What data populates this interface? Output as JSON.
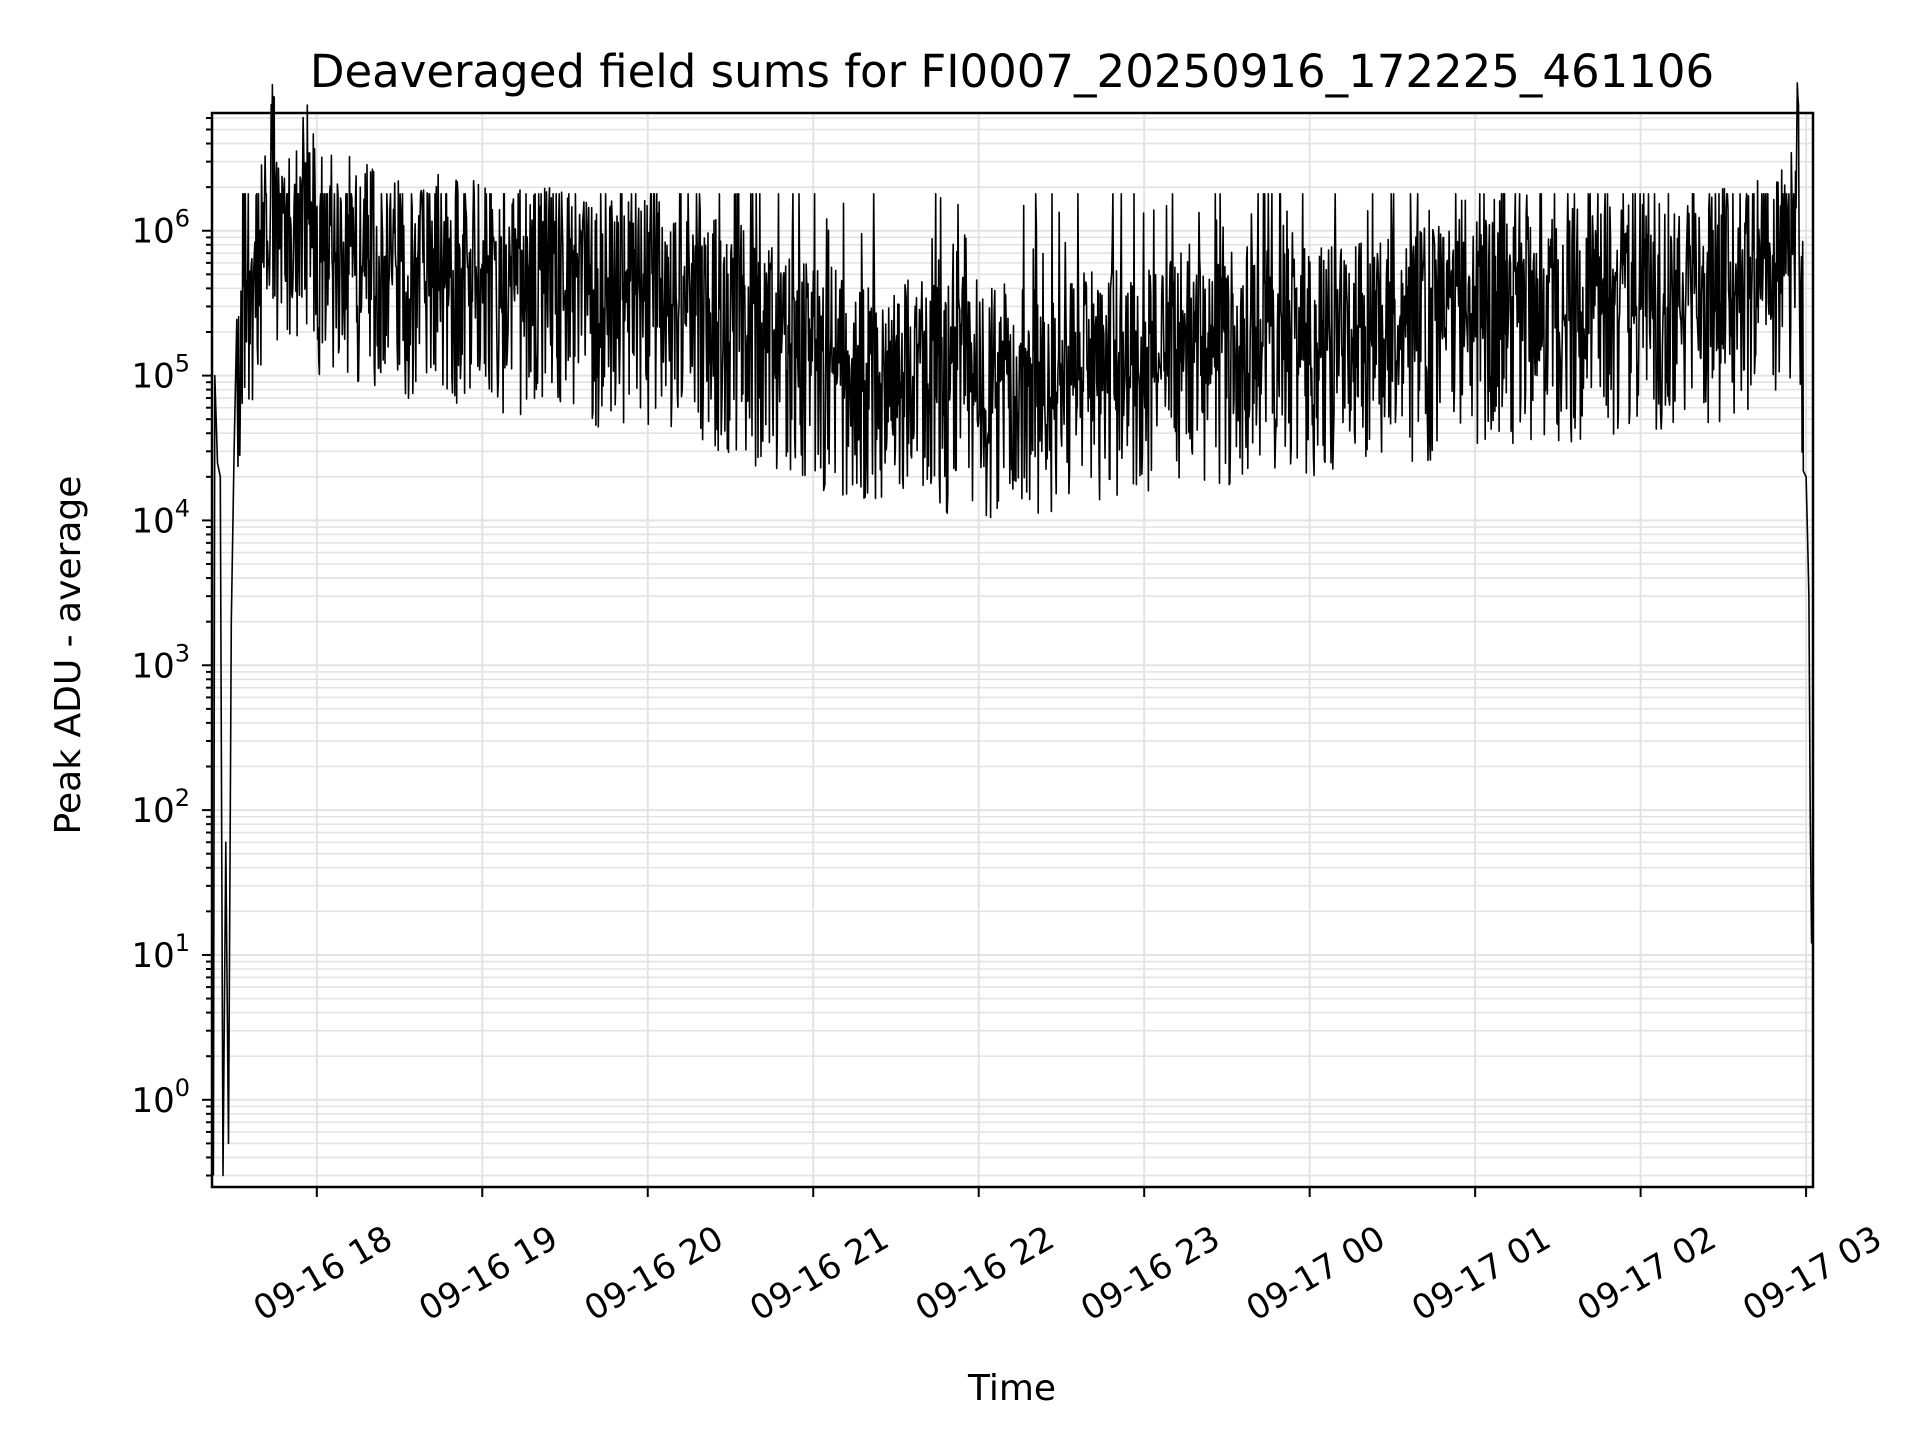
{
  "chart_data": {
    "type": "line",
    "title": "Deaveraged field sums for FI0007_20250916_172225_461106",
    "xlabel": "Time",
    "ylabel": "Peak ADU - average",
    "yscale": "log",
    "ylim": [
      0.25,
      6500000
    ],
    "xlim": [
      "2025-09-16T17:22:00",
      "2025-09-17T03:02:30"
    ],
    "grid": true,
    "colors": {
      "line": "#000000",
      "grid": "#e3e3e3"
    },
    "x_ticks": [
      {
        "x": "2025-09-16T18:00:00",
        "label": "09-16 18"
      },
      {
        "x": "2025-09-16T19:00:00",
        "label": "09-16 19"
      },
      {
        "x": "2025-09-16T20:00:00",
        "label": "09-16 20"
      },
      {
        "x": "2025-09-16T21:00:00",
        "label": "09-16 21"
      },
      {
        "x": "2025-09-16T22:00:00",
        "label": "09-16 22"
      },
      {
        "x": "2025-09-16T23:00:00",
        "label": "09-16 23"
      },
      {
        "x": "2025-09-17T00:00:00",
        "label": "09-17 00"
      },
      {
        "x": "2025-09-17T01:00:00",
        "label": "09-17 01"
      },
      {
        "x": "2025-09-17T02:00:00",
        "label": "09-17 02"
      },
      {
        "x": "2025-09-17T03:00:00",
        "label": "09-17 03"
      }
    ],
    "y_ticks": [
      {
        "value": 1,
        "base": "10",
        "exp": "0"
      },
      {
        "value": 10,
        "base": "10",
        "exp": "1"
      },
      {
        "value": 100,
        "base": "10",
        "exp": "2"
      },
      {
        "value": 1000,
        "base": "10",
        "exp": "3"
      },
      {
        "value": 10000,
        "base": "10",
        "exp": "4"
      },
      {
        "value": 100000,
        "base": "10",
        "exp": "5"
      },
      {
        "value": 1000000,
        "base": "10",
        "exp": "6"
      }
    ],
    "series": [
      {
        "x": [
          "2025-09-16T17:22:30",
          "2025-09-16T17:23:00",
          "2025-09-16T17:24:00",
          "2025-09-16T17:25:00",
          "2025-09-16T17:26:00",
          "2025-09-16T17:27:00",
          "2025-09-16T17:28:00",
          "2025-09-16T17:29:00",
          "2025-09-16T17:30:00",
          "2025-09-16T17:32:00",
          "2025-09-16T17:34:00",
          "2025-09-16T17:36:00",
          "2025-09-16T17:38:00",
          "2025-09-16T17:40:00",
          "2025-09-16T17:42:00",
          "2025-09-16T17:44:00",
          "2025-09-16T17:46:00",
          "2025-09-16T17:48:00",
          "2025-09-16T17:50:00",
          "2025-09-16T17:52:00",
          "2025-09-16T17:54:00",
          "2025-09-16T18:00:00",
          "2025-09-16T18:10:00",
          "2025-09-16T18:20:00",
          "2025-09-16T18:30:00",
          "2025-09-16T18:40:00",
          "2025-09-16T18:50:00",
          "2025-09-16T19:00:00",
          "2025-09-16T19:10:00",
          "2025-09-16T19:20:00",
          "2025-09-16T19:30:00",
          "2025-09-16T19:40:00",
          "2025-09-16T19:50:00",
          "2025-09-16T20:00:00",
          "2025-09-16T20:10:00",
          "2025-09-16T20:20:00",
          "2025-09-16T20:30:00",
          "2025-09-16T20:40:00",
          "2025-09-16T20:50:00",
          "2025-09-16T21:00:00",
          "2025-09-16T21:10:00",
          "2025-09-16T21:20:00",
          "2025-09-16T21:30:00",
          "2025-09-16T21:40:00",
          "2025-09-16T21:50:00",
          "2025-09-16T22:00:00",
          "2025-09-16T22:10:00",
          "2025-09-16T22:20:00",
          "2025-09-16T22:30:00",
          "2025-09-16T22:40:00",
          "2025-09-16T22:50:00",
          "2025-09-16T23:00:00",
          "2025-09-16T23:10:00",
          "2025-09-16T23:20:00",
          "2025-09-16T23:30:00",
          "2025-09-16T23:40:00",
          "2025-09-16T23:50:00",
          "2025-09-17T00:00:00",
          "2025-09-17T00:10:00",
          "2025-09-17T00:20:00",
          "2025-09-17T00:30:00",
          "2025-09-17T00:40:00",
          "2025-09-17T00:50:00",
          "2025-09-17T01:00:00",
          "2025-09-17T01:10:00",
          "2025-09-17T01:20:00",
          "2025-09-17T01:30:00",
          "2025-09-17T01:40:00",
          "2025-09-17T01:50:00",
          "2025-09-17T02:00:00",
          "2025-09-17T02:10:00",
          "2025-09-17T02:20:00",
          "2025-09-17T02:30:00",
          "2025-09-17T02:40:00",
          "2025-09-17T02:50:00",
          "2025-09-17T02:55:00",
          "2025-09-17T02:57:00",
          "2025-09-17T02:58:00",
          "2025-09-17T02:59:00",
          "2025-09-17T03:00:00",
          "2025-09-17T03:00:30",
          "2025-09-17T03:01:00",
          "2025-09-17T03:01:30",
          "2025-09-17T03:02:00"
        ],
        "y": [
          0.3,
          100000,
          25000,
          20000,
          0.3,
          60,
          0.5,
          2000,
          30000,
          100000,
          300000,
          500000,
          400000,
          800000,
          700000,
          2500000,
          600000,
          900000,
          1500000,
          700000,
          2800000,
          800000,
          700000,
          650000,
          550000,
          500000,
          450000,
          450000,
          400000,
          380000,
          400000,
          350000,
          320000,
          330000,
          300000,
          280000,
          200000,
          180000,
          150000,
          130000,
          110000,
          100000,
          90000,
          85000,
          80000,
          75000,
          80000,
          85000,
          90000,
          100000,
          110000,
          120000,
          125000,
          130000,
          140000,
          140000,
          145000,
          150000,
          160000,
          170000,
          180000,
          200000,
          220000,
          240000,
          250000,
          260000,
          270000,
          280000,
          290000,
          300000,
          320000,
          350000,
          380000,
          420000,
          500000,
          700000,
          2500000,
          500000,
          100000,
          20000,
          8000,
          3000,
          100,
          12
        ]
      }
    ]
  }
}
